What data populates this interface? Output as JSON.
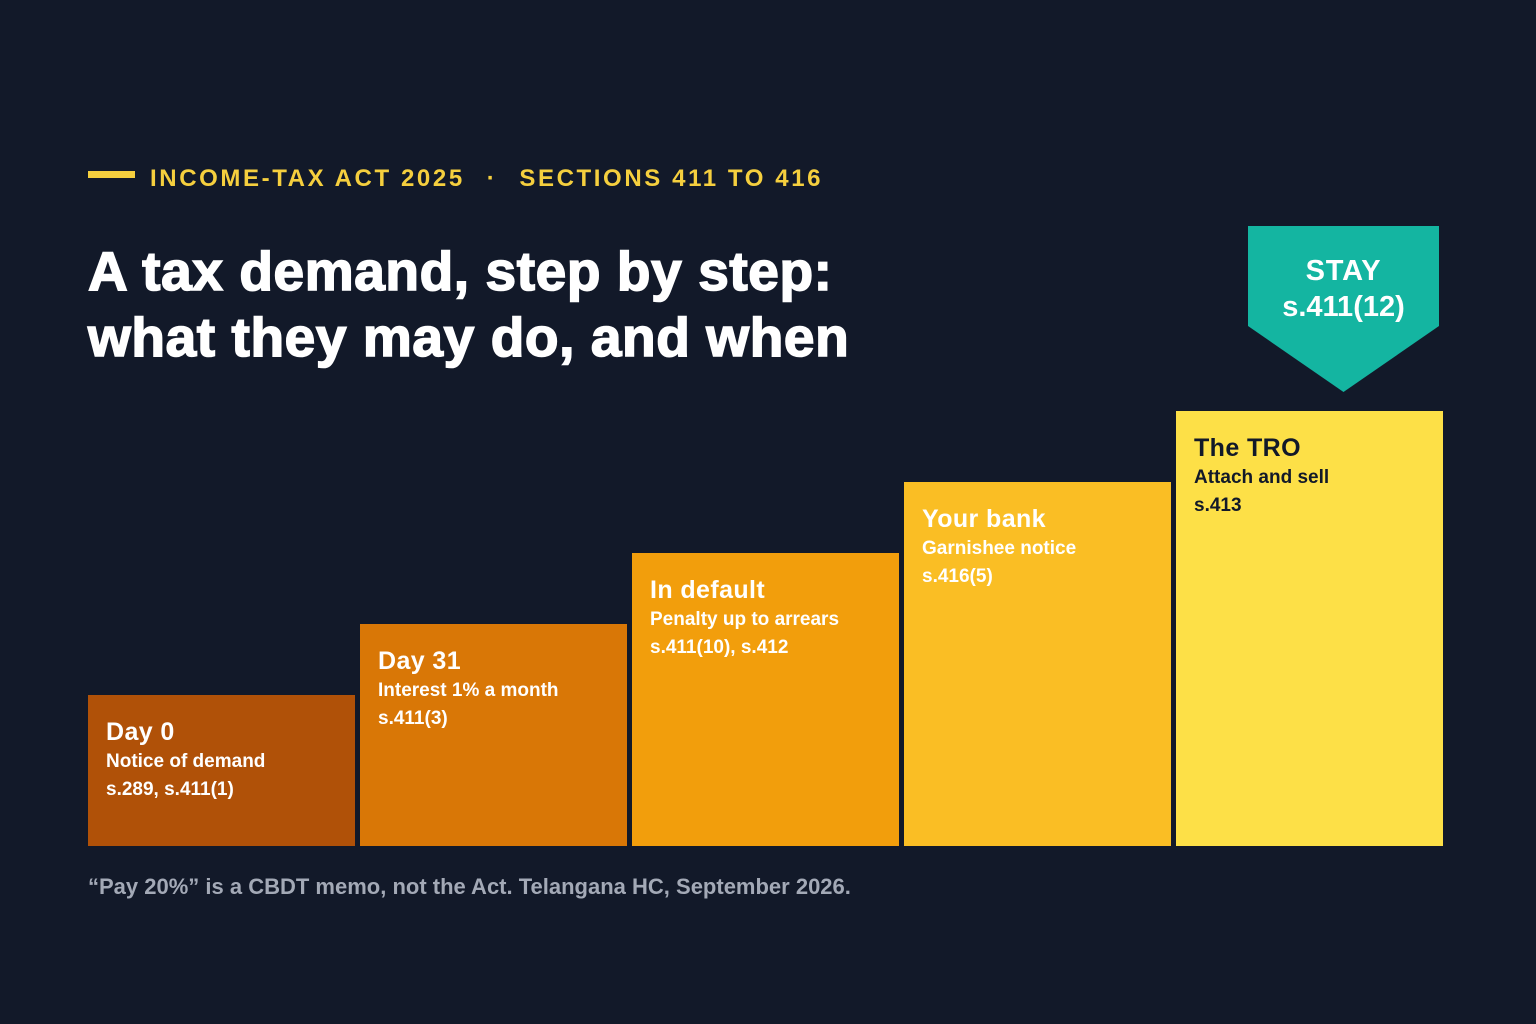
{
  "kicker": {
    "left": "INCOME-TAX ACT 2025",
    "separator": "·",
    "right": "SECTIONS 411 TO 416"
  },
  "title": {
    "line1": "A tax demand, step by step:",
    "line2": "what they may do, and when"
  },
  "steps": [
    {
      "label": "Day 0",
      "description": "Notice of demand",
      "reference": "s.289, s.411(1)",
      "color": "#B05108",
      "text_color": "#FFFFFF"
    },
    {
      "label": "Day 31",
      "description": "Interest 1% a month",
      "reference": "s.411(3)",
      "color": "#D97706",
      "text_color": "#FFFFFF"
    },
    {
      "label": "In default",
      "description": "Penalty up to arrears",
      "reference": "s.411(10), s.412",
      "color": "#F29E0C",
      "text_color": "#FFFFFF"
    },
    {
      "label": "Your bank",
      "description": "Garnishee notice",
      "reference": "s.416(5)",
      "color": "#FABE24",
      "text_color": "#FFFFFF"
    },
    {
      "label": "The TRO",
      "description": "Attach and sell",
      "reference": "s.413",
      "color": "#FDE047",
      "text_color": "#121929"
    }
  ],
  "stay": {
    "line1": "STAY",
    "line2": "s.411(12)",
    "color": "#14B5A1"
  },
  "footnote": "“Pay 20%” is a CBDT memo, not the Act. Telangana HC, September 2026."
}
